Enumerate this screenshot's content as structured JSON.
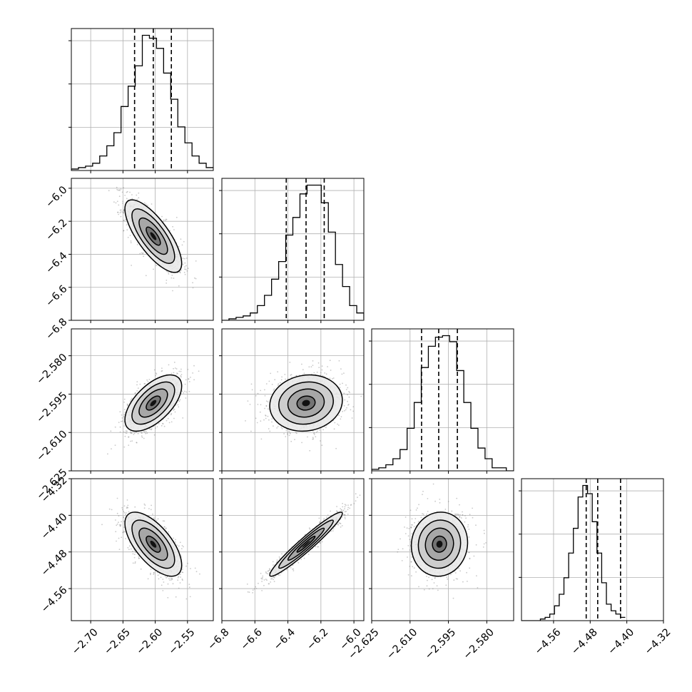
{
  "chart_data": {
    "type": "corner",
    "grid": true,
    "histogram_quantile_lines": "dashed",
    "parameters": [
      {
        "range": [
          -2.73,
          -2.51
        ],
        "ticks": [
          -2.7,
          -2.65,
          -2.6,
          -2.55
        ],
        "tick_labels": [
          "−2.70",
          "−2.65",
          "−2.60",
          "−2.55"
        ],
        "quantiles": [
          -2.632,
          -2.603,
          -2.575
        ],
        "hist_edges_start": -2.73,
        "hist_bin_width": 0.011,
        "hist_counts": [
          1,
          2,
          3,
          5,
          10,
          17,
          26,
          44,
          58,
          72,
          93,
          91,
          84,
          67,
          49,
          30,
          19,
          10,
          5,
          2
        ]
      },
      {
        "range": [
          -6.8,
          -5.94
        ],
        "ticks": [
          -6.8,
          -6.6,
          -6.4,
          -6.2,
          -6.0
        ],
        "tick_labels": [
          "−6.8",
          "−6.6",
          "−6.4",
          "−6.2",
          "−6.0"
        ],
        "quantiles": [
          -6.41,
          -6.29,
          -6.18
        ],
        "hist_edges_start": -6.8,
        "hist_bin_width": 0.043,
        "hist_counts": [
          0,
          1,
          2,
          3,
          5,
          10,
          17,
          28,
          40,
          58,
          70,
          86,
          92,
          92,
          80,
          60,
          38,
          23,
          10,
          5,
          1
        ]
      },
      {
        "range": [
          -2.625,
          -2.5695
        ],
        "ticks": [
          -2.625,
          -2.61,
          -2.595,
          -2.58
        ],
        "tick_labels": [
          "−2.625",
          "−2.610",
          "−2.595",
          "−2.580"
        ],
        "quantiles": [
          -2.6055,
          -2.5988,
          -2.5915
        ],
        "hist_edges_start": -2.625,
        "hist_bin_width": 0.00277,
        "hist_counts": [
          1,
          2,
          4,
          8,
          14,
          28,
          45,
          68,
          82,
          88,
          89,
          85,
          66,
          45,
          28,
          15,
          8,
          2,
          2,
          0
        ]
      },
      {
        "range": [
          -4.63,
          -4.32
        ],
        "ticks": [
          -4.56,
          -4.48,
          -4.4,
          -4.32
        ],
        "tick_labels": [
          "−4.56",
          "−4.48",
          "−4.40",
          "−4.32"
        ],
        "quantiles": [
          -4.4887,
          -4.4636,
          -4.4137
        ],
        "hist_edges_start": -4.63,
        "hist_bin_width": 0.0103,
        "hist_counts": [
          0,
          0,
          0,
          0,
          1,
          2,
          4,
          9,
          16,
          26,
          41,
          56,
          75,
          82,
          77,
          60,
          41,
          23,
          10,
          6,
          4,
          2
        ]
      }
    ],
    "pairs": [
      {
        "x": 0,
        "y": 1,
        "mean": [
          -2.603,
          -6.29
        ],
        "sd": [
          0.022,
          0.11
        ],
        "rho": -0.75
      },
      {
        "x": 0,
        "y": 2,
        "mean": [
          -2.603,
          -2.5985
        ],
        "sd": [
          0.022,
          0.0055
        ],
        "rho": 0.6
      },
      {
        "x": 1,
        "y": 2,
        "mean": [
          -6.29,
          -2.5985
        ],
        "sd": [
          0.11,
          0.0055
        ],
        "rho": 0.1
      },
      {
        "x": 0,
        "y": 3,
        "mean": [
          -2.603,
          -4.463
        ],
        "sd": [
          0.022,
          0.035
        ],
        "rho": -0.65
      },
      {
        "x": 1,
        "y": 3,
        "mean": [
          -6.29,
          -4.463
        ],
        "sd": [
          0.11,
          0.035
        ],
        "rho": 0.96
      },
      {
        "x": 2,
        "y": 3,
        "mean": [
          -2.5985,
          -4.463
        ],
        "sd": [
          0.0055,
          0.035
        ],
        "rho": 0.05
      }
    ],
    "contour_levels_sigma": [
      0.5,
      1.0,
      1.5,
      2.0
    ],
    "colors": {
      "lines": "#000000",
      "points": "#888888",
      "grid": "#b0b0b0"
    }
  }
}
